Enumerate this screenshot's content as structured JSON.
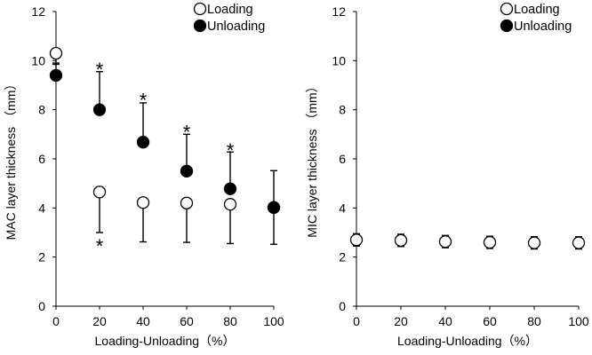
{
  "chart_data": [
    {
      "type": "scatter",
      "xlabel": "Loading-Unloading（%）",
      "ylabel": "MAC layer thickness （mm）",
      "xlim": [
        0,
        100
      ],
      "ylim": [
        0,
        12
      ],
      "x_ticks": [
        "0",
        "20",
        "40",
        "60",
        "80",
        "100"
      ],
      "y_ticks": [
        "0",
        "2",
        "4",
        "6",
        "8",
        "10",
        "12"
      ],
      "grid": false,
      "legend_position": "top-right",
      "series": [
        {
          "name": "Loading",
          "marker": "open-circle",
          "x": [
            0,
            20,
            40,
            60,
            80,
            100
          ],
          "y": [
            10.3,
            4.65,
            4.22,
            4.2,
            4.15,
            4.02
          ],
          "error": [
            0.45,
            1.65,
            1.6,
            1.6,
            1.6,
            1.5
          ],
          "error_direction": "down"
        },
        {
          "name": "Unloading",
          "marker": "filled-circle",
          "x": [
            0,
            20,
            40,
            60,
            80,
            100
          ],
          "y": [
            9.4,
            8.0,
            6.68,
            5.5,
            4.78,
            4.02
          ],
          "error": [
            0.5,
            1.55,
            1.6,
            1.5,
            1.5,
            1.5
          ],
          "error_direction": "up"
        }
      ],
      "significance_markers": [
        {
          "x": 20,
          "y": 9.8,
          "text": "*"
        },
        {
          "x": 40,
          "y": 8.55,
          "text": "*"
        },
        {
          "x": 60,
          "y": 7.25,
          "text": "*"
        },
        {
          "x": 80,
          "y": 6.5,
          "text": "*"
        },
        {
          "x": 20,
          "y": 2.6,
          "text": "*"
        }
      ]
    },
    {
      "type": "scatter",
      "xlabel": "Loading-Unloading（%）",
      "ylabel": "MIC layer thickness （mm）",
      "xlim": [
        0,
        100
      ],
      "ylim": [
        0,
        12
      ],
      "x_ticks": [
        "0",
        "20",
        "40",
        "60",
        "80",
        "100"
      ],
      "y_ticks": [
        "0",
        "2",
        "4",
        "6",
        "8",
        "10",
        "12"
      ],
      "grid": false,
      "legend_position": "top-right",
      "series": [
        {
          "name": "Loading",
          "marker": "open-circle",
          "x": [
            0,
            20,
            40,
            60,
            80,
            100
          ],
          "y": [
            2.7,
            2.68,
            2.63,
            2.6,
            2.58,
            2.58
          ],
          "error": [
            0.25,
            0.25,
            0.25,
            0.25,
            0.25,
            0.25
          ],
          "error_direction": "both"
        }
      ],
      "legend_entries": [
        {
          "name": "Loading",
          "marker": "open-circle"
        },
        {
          "name": "Unloading",
          "marker": "filled-circle"
        }
      ]
    }
  ]
}
